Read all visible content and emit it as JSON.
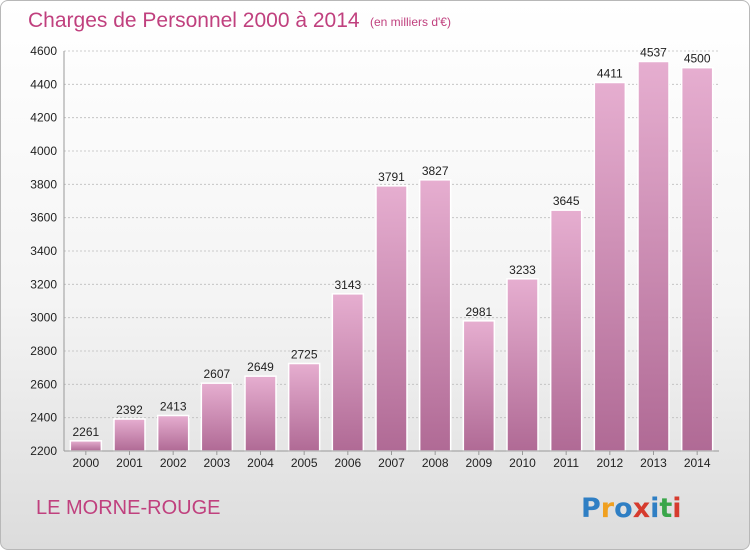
{
  "chart_data": {
    "type": "bar",
    "title": "Charges de Personnel 2000 à 2014",
    "subtitle": "(en milliers d'€)",
    "categories": [
      "2000",
      "2001",
      "2002",
      "2003",
      "2004",
      "2005",
      "2006",
      "2007",
      "2008",
      "2009",
      "2010",
      "2011",
      "2012",
      "2013",
      "2014"
    ],
    "values": [
      2261,
      2392,
      2413,
      2607,
      2649,
      2725,
      3143,
      3791,
      3827,
      2981,
      3233,
      3645,
      4411,
      4537,
      4500
    ],
    "ylim": [
      2200,
      4600
    ],
    "yticks": [
      2200,
      2400,
      2600,
      2800,
      3000,
      3200,
      3400,
      3600,
      3800,
      4000,
      4200,
      4400,
      4600
    ],
    "grid": true,
    "bar_color": "#d28fb8"
  },
  "footer": {
    "place": "LE MORNE-ROUGE",
    "logo": "Proxiti"
  }
}
